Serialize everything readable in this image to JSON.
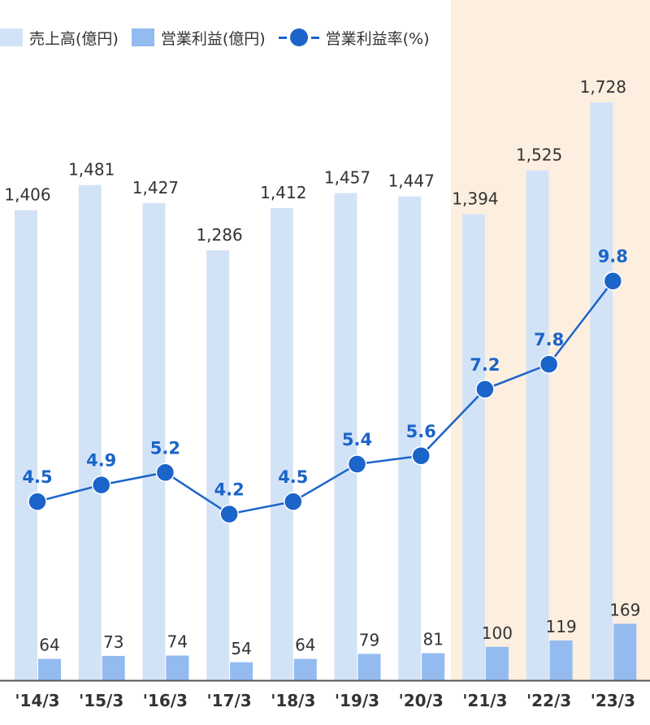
{
  "legend": {
    "sales": "売上高(億円)",
    "profit": "営業利益(億円)",
    "rate": "営業利益率(%)"
  },
  "colors": {
    "sales": "#d3e3f7",
    "profit": "#93bbef",
    "rate_line": "#1b64c9",
    "rate_dot": "#1b64c9",
    "highlight": "#fcefe0",
    "axis": "#555555"
  },
  "chart_data": {
    "type": "bar",
    "categories": [
      "'14/3",
      "'15/3",
      "'16/3",
      "'17/3",
      "'18/3",
      "'19/3",
      "'20/3",
      "'21/3",
      "'22/3",
      "'23/3"
    ],
    "series": [
      {
        "name": "売上高(億円)",
        "type": "bar",
        "values": [
          1406,
          1481,
          1427,
          1286,
          1412,
          1457,
          1447,
          1394,
          1525,
          1728
        ]
      },
      {
        "name": "営業利益(億円)",
        "type": "bar",
        "values": [
          64,
          73,
          74,
          54,
          64,
          79,
          81,
          100,
          119,
          169
        ]
      },
      {
        "name": "営業利益率(%)",
        "type": "line",
        "values": [
          4.5,
          4.9,
          5.2,
          4.2,
          4.5,
          5.4,
          5.6,
          7.2,
          7.8,
          9.8
        ]
      }
    ],
    "bar_labels": [
      [
        "1,406",
        "1,481",
        "1,427",
        "1,286",
        "1,412",
        "1,457",
        "1,447",
        "1,394",
        "1,525",
        "1,728"
      ],
      [
        "64",
        "73",
        "74",
        "54",
        "64",
        "79",
        "81",
        "100",
        "119",
        "169"
      ]
    ],
    "rate_labels": [
      "4.5",
      "4.9",
      "5.2",
      "4.2",
      "4.5",
      "5.4",
      "5.6",
      "7.2",
      "7.8",
      "9.8"
    ],
    "highlight_categories": [
      "'21/3",
      "'22/3",
      "'23/3"
    ],
    "ylim_bars": [
      0,
      1728
    ],
    "ylim_rate": [
      0,
      12
    ],
    "legend_position": "top-left",
    "grid": false,
    "title": "",
    "xlabel": "",
    "ylabel": ""
  }
}
